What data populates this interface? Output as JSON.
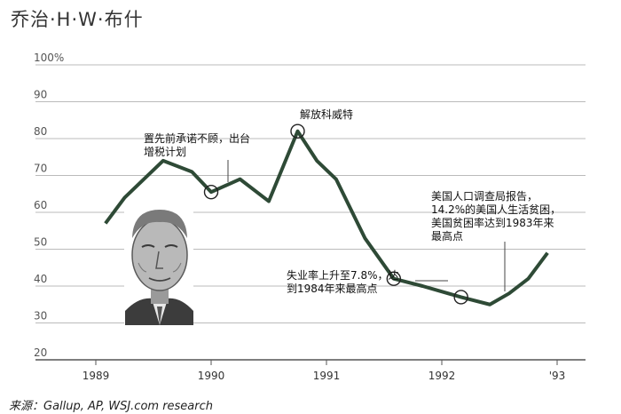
{
  "title": "乔治·H·W·布什",
  "source": "来源：Gallup, AP, WSJ.com research",
  "chart_data": {
    "type": "line",
    "title": "乔治·H·W·布什",
    "xlabel": "",
    "ylabel": "",
    "ylim": [
      20,
      100
    ],
    "yticks": [
      "100%",
      "90",
      "80",
      "70",
      "60",
      "50",
      "40",
      "30",
      "20"
    ],
    "xticks": [
      "1989",
      "1990",
      "1991",
      "1992",
      "'93"
    ],
    "grid": true,
    "line_color": "#2e4a36",
    "series": [
      {
        "x": [
          "1989-02",
          "1989-04",
          "1989-08",
          "1989-11",
          "1990-01",
          "1990-04",
          "1990-07",
          "1990-10",
          "1990-12",
          "1991-02",
          "1991-05",
          "1991-08",
          "1991-11",
          "1992-03",
          "1992-06",
          "1992-08",
          "1992-10",
          "1992-12"
        ],
        "values": [
          57,
          64,
          74,
          71,
          65.5,
          69,
          63,
          82,
          74,
          69,
          53,
          42,
          40,
          37,
          35,
          38,
          42,
          49
        ]
      }
    ],
    "annotations": [
      {
        "text_lines": [
          "置先前承诺不顾，出台",
          "增税计划"
        ],
        "value": 65.5
      },
      {
        "text_lines": [
          "解放科威特"
        ],
        "value": 82
      },
      {
        "text_lines": [
          "失业率上升至7.8%，达",
          "到1984年来最高点"
        ],
        "value": 42
      },
      {
        "text_lines": [
          "美国人口调查局报告，",
          "14.2%的美国人生活贫困，",
          "美国贫困率达到1983年来",
          "最高点"
        ],
        "value": 37
      }
    ]
  },
  "portrait": {
    "icon": "george-hw-bush-portrait-icon"
  }
}
